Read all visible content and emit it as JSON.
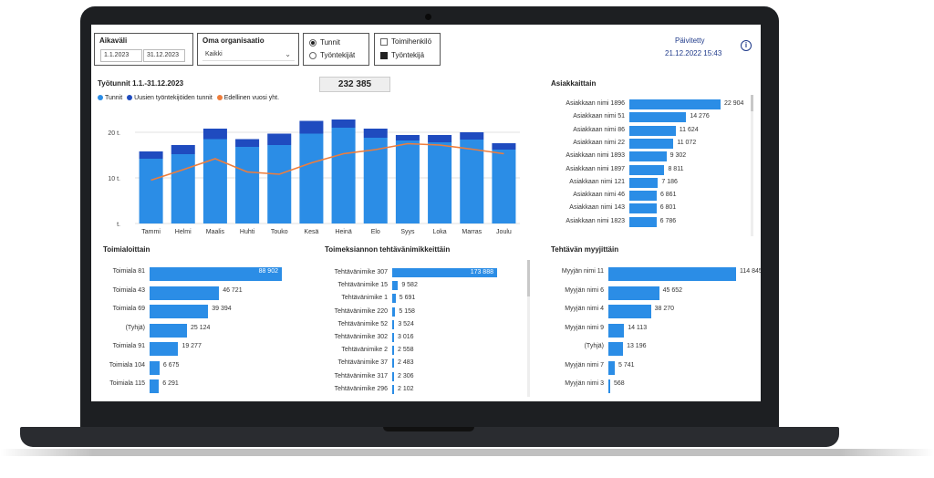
{
  "filters": {
    "aikavali": {
      "label": "Aikaväli",
      "start": "1.1.2023",
      "end": "31.12.2023"
    },
    "organisation": {
      "label": "Oma organisaatio",
      "value": "Kaikki"
    },
    "measure": {
      "options": [
        "Tunnit",
        "Työntekijät"
      ],
      "selected": "Tunnit"
    },
    "role": {
      "options": [
        "Toimihenkilö",
        "Työntekijä"
      ],
      "checked": [
        false,
        true
      ]
    }
  },
  "updated": {
    "label": "Päivitetty",
    "value": "21.12.2022 15:43",
    "info_icon": "info-circle-icon"
  },
  "kpi": {
    "value": "232 385"
  },
  "main_chart": {
    "title": "Työtunnit 1.1.-31.12.2023",
    "legend": [
      "Tunnit",
      "Uusien työntekijöiden tunnit",
      "Edellinen vuosi yht."
    ],
    "yticks": [
      "20 t.",
      "10 t.",
      "t."
    ]
  },
  "chart_data": [
    {
      "type": "bar",
      "title": "Työtunnit 1.1.-31.12.2023",
      "categories": [
        "Tammi",
        "Helmi",
        "Maalis",
        "Huhti",
        "Touko",
        "Kesä",
        "Heinä",
        "Elo",
        "Syys",
        "Loka",
        "Marras",
        "Joulu"
      ],
      "series": [
        {
          "name": "Tunnit",
          "values": [
            14.2,
            15.2,
            18.5,
            16.8,
            17.2,
            19.7,
            21.0,
            18.8,
            18.2,
            17.8,
            18.4,
            16.2
          ]
        },
        {
          "name": "Uusien työntekijöiden tunnit",
          "values": [
            1.6,
            2.0,
            2.3,
            1.7,
            2.5,
            2.8,
            1.8,
            2.0,
            1.2,
            1.6,
            1.6,
            1.4
          ]
        },
        {
          "name": "Edellinen vuosi yht.",
          "values": [
            9.5,
            11.8,
            14.2,
            11.3,
            10.8,
            13.3,
            15.3,
            16.2,
            17.5,
            17.2,
            16.3,
            15.3
          ]
        }
      ],
      "ylim": [
        0,
        25
      ],
      "colors": [
        "#2b8de6",
        "#1f4bbf",
        "#ef7d3b"
      ]
    },
    {
      "type": "bar",
      "title": "Asiakkaittain",
      "categories": [
        "Asiakkaan nimi 1896",
        "Asiakkaan nimi 51",
        "Asiakkaan nimi 86",
        "Asiakkaan nimi 22",
        "Asiakkaan nimi 1893",
        "Asiakkaan nimi 1897",
        "Asiakkaan nimi 121",
        "Asiakkaan nimi 46",
        "Asiakkaan nimi 143",
        "Asiakkaan nimi 1823"
      ],
      "values": [
        22904,
        14276,
        11624,
        11072,
        9302,
        8811,
        7186,
        6861,
        6801,
        6786
      ],
      "labels": [
        "22 904",
        "14 276",
        "11 624",
        "11 072",
        "9 302",
        "8 811",
        "7 186",
        "6 861",
        "6 801",
        "6 786"
      ]
    },
    {
      "type": "bar",
      "title": "Toimialoittain",
      "categories": [
        "Toimiala 81",
        "Toimiala 43",
        "Toimiala 69",
        "(Tyhjä)",
        "Toimiala 91",
        "Toimiala 104",
        "Toimiala 115"
      ],
      "values": [
        88902,
        46721,
        39394,
        25124,
        19277,
        6675,
        6291
      ],
      "labels": [
        "88 902",
        "46 721",
        "39 394",
        "25 124",
        "19 277",
        "6 675",
        "6 291"
      ]
    },
    {
      "type": "bar",
      "title": "Toimeksiannon tehtävänimikkeittäin",
      "categories": [
        "Tehtävänimike 307",
        "Tehtävänimike 15",
        "Tehtävänimike 1",
        "Tehtävänimike 220",
        "Tehtävänimike 52",
        "Tehtävänimike 302",
        "Tehtävänimike 2",
        "Tehtävänimike 37",
        "Tehtävänimike 317",
        "Tehtävänimike 296"
      ],
      "values": [
        173888,
        9582,
        5691,
        5158,
        3524,
        3016,
        2558,
        2483,
        2306,
        2102
      ],
      "labels": [
        "173 888",
        "9 582",
        "5 691",
        "5 158",
        "3 524",
        "3 016",
        "2 558",
        "2 483",
        "2 306",
        "2 102"
      ]
    },
    {
      "type": "bar",
      "title": "Tehtävän myyjittäin",
      "categories": [
        "Myyjän nimi 11",
        "Myyjän nimi 6",
        "Myyjän nimi 4",
        "Myyjän nimi 9",
        "(Tyhjä)",
        "Myyjän nimi 7",
        "Myyjän nimi 3"
      ],
      "values": [
        114845,
        45652,
        38270,
        14113,
        13196,
        5741,
        568
      ],
      "labels": [
        "114 845",
        "45 652",
        "38 270",
        "14 113",
        "13 196",
        "5 741",
        "568"
      ]
    }
  ]
}
